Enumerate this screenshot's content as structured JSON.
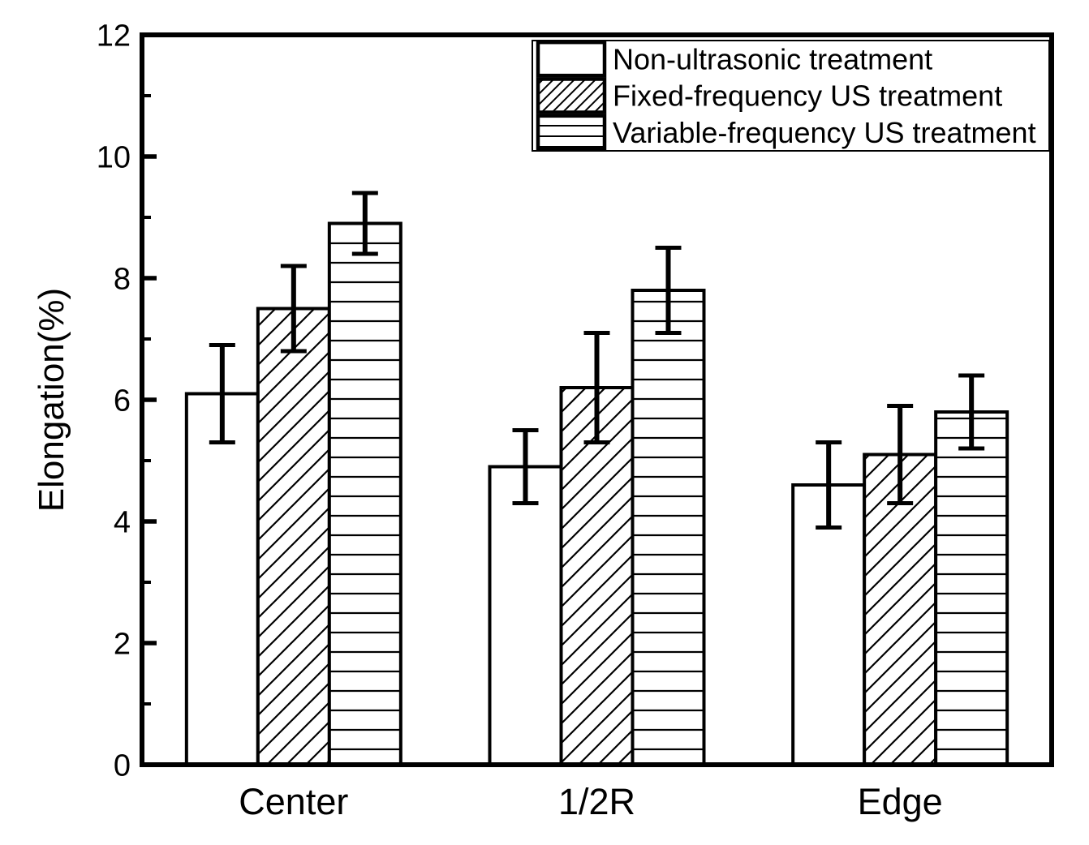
{
  "figure": {
    "background_color": "#ffffff",
    "line_color": "#000000",
    "bar_fill_color": "#ffffff"
  },
  "chart_data": {
    "type": "bar",
    "title": "",
    "xlabel": "",
    "ylabel": "Elongation(%)",
    "categories": [
      "Center",
      "1/2R",
      "Edge"
    ],
    "series": [
      {
        "name": "Non-ultrasonic treatment",
        "hatch": "none",
        "values": [
          6.1,
          4.9,
          4.6
        ],
        "errors": [
          0.8,
          0.6,
          0.7
        ]
      },
      {
        "name": "Fixed-frequency US treatment",
        "hatch": "diagonal",
        "values": [
          7.5,
          6.2,
          5.1
        ],
        "errors": [
          0.7,
          0.9,
          0.8
        ]
      },
      {
        "name": "Variable-frequency US treatment",
        "hatch": "horizontal",
        "values": [
          8.9,
          7.8,
          5.8
        ],
        "errors": [
          0.5,
          0.7,
          0.6
        ]
      }
    ],
    "ylim": [
      0,
      12
    ],
    "yticks_major": [
      0,
      2,
      4,
      6,
      8,
      10,
      12
    ],
    "ytick_labels": [
      "0",
      "2",
      "4",
      "6",
      "8",
      "10",
      "12"
    ],
    "yticks_minor": [
      1,
      3,
      5,
      7,
      9,
      11
    ],
    "grid": false,
    "error_bars": true,
    "legend": {
      "position": "top-right",
      "border": true,
      "entries": [
        "Non-ultrasonic treatment",
        "Fixed-frequency US treatment",
        "Variable-frequency US treatment"
      ]
    }
  }
}
